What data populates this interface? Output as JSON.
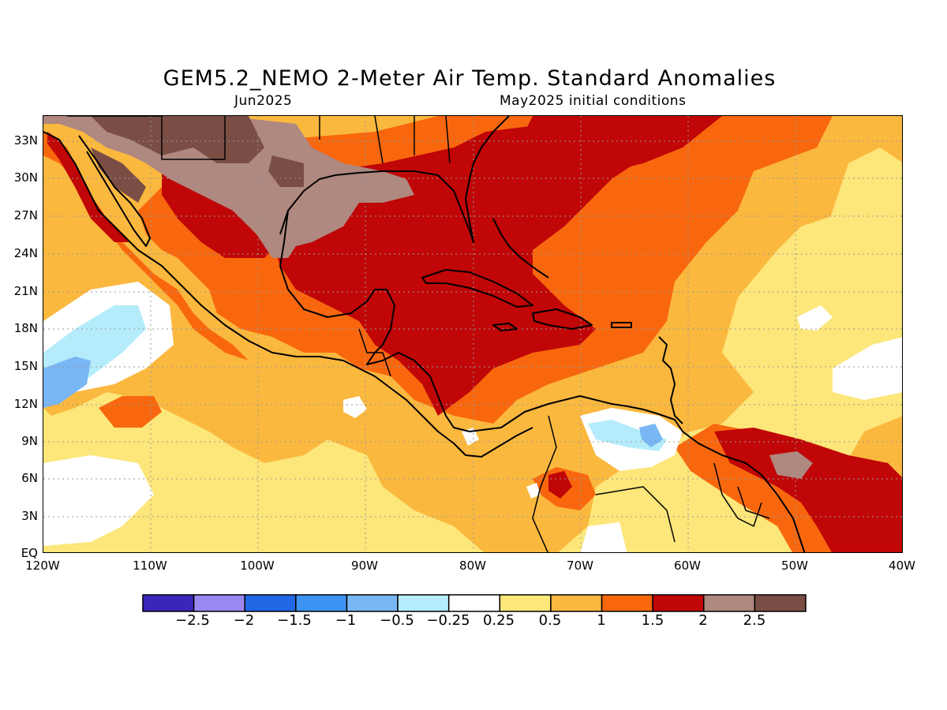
{
  "title": "GEM5.2_NEMO 2-Meter Air Temp. Standard Anomalies",
  "subtitle_left": "Jun2025",
  "subtitle_right": "May2025 initial conditions",
  "lat_labels": [
    "33N",
    "30N",
    "27N",
    "24N",
    "21N",
    "18N",
    "15N",
    "12N",
    "9N",
    "6N",
    "3N",
    "EQ"
  ],
  "lon_labels": [
    "120W",
    "110W",
    "100W",
    "90W",
    "80W",
    "70W",
    "60W",
    "50W",
    "40W"
  ],
  "colorbar": {
    "colors": [
      "#3a26b8",
      "#9b87f2",
      "#2268e6",
      "#3d93f2",
      "#78b6f4",
      "#b4ecfb",
      "#ffffff",
      "#fde67a",
      "#fbb83e",
      "#f8670e",
      "#c00606",
      "#af8880",
      "#7a4e44"
    ],
    "labels": [
      "−2.5",
      "−2",
      "−1.5",
      "−1",
      "−0.5",
      "−0.25",
      "0.25",
      "0.5",
      "1",
      "1.5",
      "2",
      "2.5"
    ]
  },
  "palette": {
    "pale_yellow": "#fde67a",
    "light_orange": "#fbb83e",
    "orange": "#f8670e",
    "dark_red": "#c00606",
    "brown_light": "#af8880",
    "brown_dark": "#7a4e44",
    "light_blue": "#b4ecfb",
    "blue": "#78b6f4",
    "mid_blue": "#3d93f2"
  }
}
